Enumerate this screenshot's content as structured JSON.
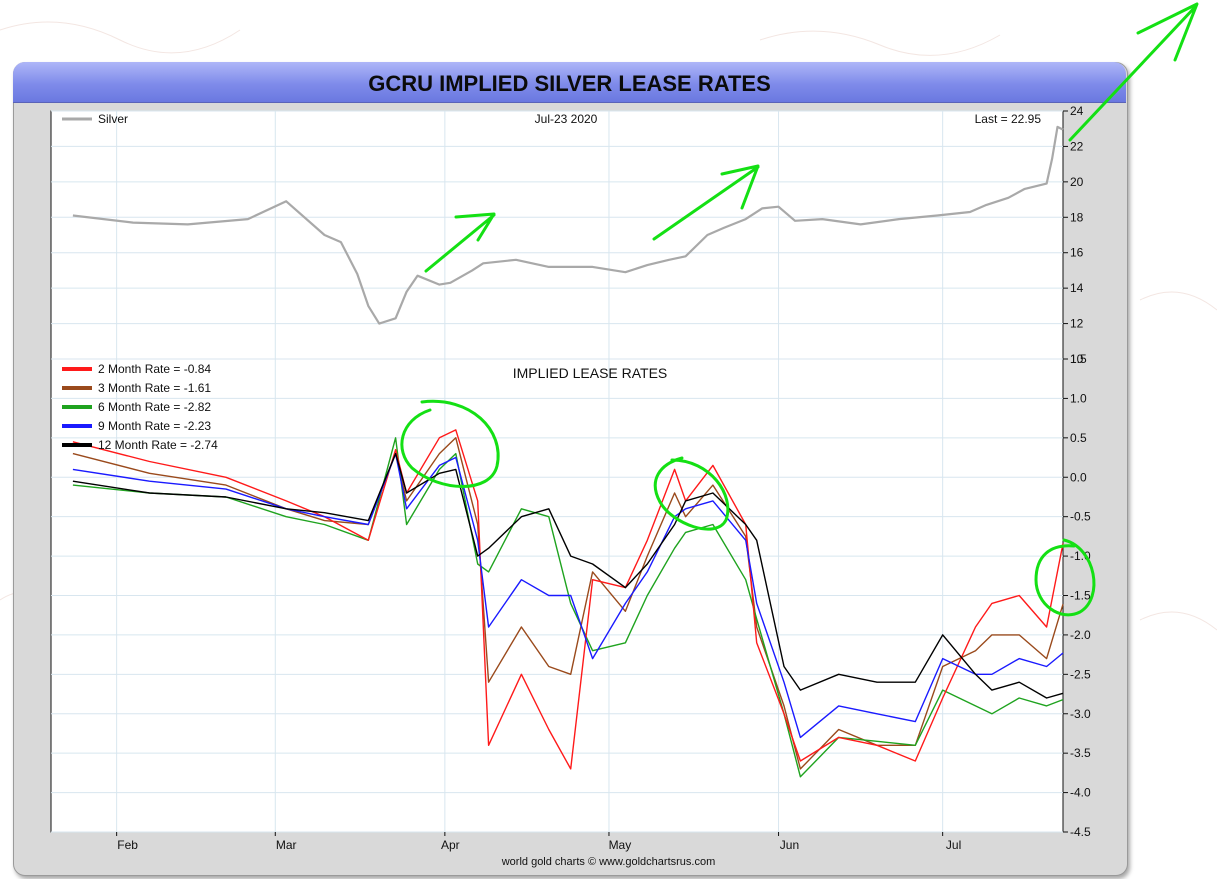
{
  "title": "GCRU IMPLIED SILVER LEASE RATES",
  "credit": "world gold charts © www.goldchartsrus.com",
  "top_panel": {
    "legend": "Silver",
    "date_label": "Jul-23  2020",
    "last_label": "Last = 22.95"
  },
  "bottom_panel": {
    "title": "IMPLIED LEASE RATES"
  },
  "x_ticks": [
    "Feb",
    "Mar",
    "Apr",
    "May",
    "Jun",
    "Jul"
  ],
  "colors": {
    "silver": "#a9a9a9",
    "rate_2m": "#ff1a1a",
    "rate_3m": "#9a4a1c",
    "rate_6m": "#1fa31f",
    "rate_9m": "#1a1aff",
    "rate_12m": "#000000",
    "annotation": "#14e014",
    "grid": "#d8e6ef"
  },
  "chart_data": [
    {
      "type": "line",
      "title": "",
      "xlabel": "",
      "ylabel": "",
      "ylim": [
        10,
        24
      ],
      "yticks": [
        "10",
        "12",
        "14",
        "16",
        "18",
        "20",
        "22",
        "24"
      ],
      "grid": true,
      "legend_position": "top-left",
      "x": [
        "2020-01-24",
        "2020-02-04",
        "2020-02-14",
        "2020-02-25",
        "2020-03-03",
        "2020-03-10",
        "2020-03-13",
        "2020-03-16",
        "2020-03-18",
        "2020-03-20",
        "2020-03-23",
        "2020-03-25",
        "2020-03-27",
        "2020-03-31",
        "2020-04-02",
        "2020-04-06",
        "2020-04-08",
        "2020-04-14",
        "2020-04-20",
        "2020-04-28",
        "2020-05-04",
        "2020-05-08",
        "2020-05-12",
        "2020-05-15",
        "2020-05-19",
        "2020-05-22",
        "2020-05-26",
        "2020-05-29",
        "2020-06-01",
        "2020-06-04",
        "2020-06-09",
        "2020-06-16",
        "2020-06-23",
        "2020-06-30",
        "2020-07-06",
        "2020-07-09",
        "2020-07-13",
        "2020-07-16",
        "2020-07-20",
        "2020-07-21",
        "2020-07-22",
        "2020-07-23"
      ],
      "series": [
        {
          "name": "Silver",
          "values": [
            18.1,
            17.7,
            17.6,
            17.9,
            18.9,
            17.0,
            16.6,
            14.8,
            13.0,
            12.0,
            12.3,
            13.8,
            14.7,
            14.2,
            14.3,
            15.0,
            15.4,
            15.6,
            15.2,
            15.2,
            14.9,
            15.3,
            15.6,
            15.8,
            17.0,
            17.4,
            17.9,
            18.5,
            18.6,
            17.8,
            17.9,
            17.6,
            17.9,
            18.1,
            18.3,
            18.7,
            19.1,
            19.6,
            19.9,
            21.3,
            23.1,
            22.95
          ]
        }
      ]
    },
    {
      "type": "line",
      "title": "IMPLIED LEASE RATES",
      "xlabel": "",
      "ylabel": "",
      "ylim": [
        -4.5,
        1.5
      ],
      "yticks": [
        "1.5",
        "1.0",
        "0.5",
        "0.0",
        "-0.5",
        "-1.0",
        "-1.5",
        "-2.0",
        "-2.5",
        "-3.0",
        "-3.5",
        "-4.0",
        "-4.5"
      ],
      "grid": true,
      "legend_position": "top-left",
      "x": [
        "2020-01-24",
        "2020-02-07",
        "2020-02-21",
        "2020-03-03",
        "2020-03-10",
        "2020-03-18",
        "2020-03-23",
        "2020-03-25",
        "2020-03-31",
        "2020-04-03",
        "2020-04-07",
        "2020-04-09",
        "2020-04-15",
        "2020-04-20",
        "2020-04-24",
        "2020-04-28",
        "2020-05-04",
        "2020-05-08",
        "2020-05-13",
        "2020-05-15",
        "2020-05-20",
        "2020-05-26",
        "2020-05-28",
        "2020-06-02",
        "2020-06-05",
        "2020-06-12",
        "2020-06-19",
        "2020-06-26",
        "2020-07-01",
        "2020-07-07",
        "2020-07-10",
        "2020-07-15",
        "2020-07-20",
        "2020-07-23"
      ],
      "series": [
        {
          "name": "2 Month Rate  = -0.84",
          "legend_label": "2 Month Rate  = -0.84",
          "color_key": "rate_2m",
          "values": [
            0.45,
            0.2,
            0.0,
            -0.3,
            -0.5,
            -0.8,
            0.35,
            -0.2,
            0.5,
            0.6,
            -0.3,
            -3.4,
            -2.5,
            -3.2,
            -3.7,
            -1.3,
            -1.4,
            -0.8,
            0.1,
            -0.3,
            0.15,
            -0.6,
            -2.1,
            -3.0,
            -3.6,
            -3.3,
            -3.4,
            -3.6,
            -2.8,
            -1.9,
            -1.6,
            -1.5,
            -1.9,
            -0.84
          ]
        },
        {
          "name": "3 Month Rate  = -1.61",
          "legend_label": "3 Month Rate  = -1.61",
          "color_key": "rate_3m",
          "values": [
            0.3,
            0.05,
            -0.1,
            -0.4,
            -0.55,
            -0.6,
            0.3,
            -0.3,
            0.3,
            0.5,
            -0.6,
            -2.6,
            -1.9,
            -2.4,
            -2.5,
            -1.2,
            -1.7,
            -1.0,
            -0.2,
            -0.5,
            -0.1,
            -0.75,
            -1.9,
            -2.9,
            -3.7,
            -3.2,
            -3.4,
            -3.4,
            -2.4,
            -2.2,
            -2.0,
            -2.0,
            -2.3,
            -1.61
          ]
        },
        {
          "name": "6 Month Rate  = -2.82",
          "legend_label": "6 Month Rate  = -2.82",
          "color_key": "rate_6m",
          "values": [
            -0.1,
            -0.2,
            -0.25,
            -0.5,
            -0.6,
            -0.8,
            0.5,
            -0.6,
            0.1,
            0.3,
            -1.1,
            -1.2,
            -0.4,
            -0.5,
            -1.6,
            -2.2,
            -2.1,
            -1.5,
            -0.9,
            -0.7,
            -0.6,
            -1.3,
            -1.8,
            -3.0,
            -3.8,
            -3.3,
            -3.35,
            -3.4,
            -2.7,
            -2.9,
            -3.0,
            -2.8,
            -2.9,
            -2.82
          ]
        },
        {
          "name": "9 Month Rate  = -2.23",
          "legend_label": "9 Month Rate  = -2.23",
          "color_key": "rate_9m",
          "values": [
            0.1,
            -0.05,
            -0.15,
            -0.4,
            -0.5,
            -0.6,
            0.3,
            -0.4,
            0.15,
            0.25,
            -0.8,
            -1.9,
            -1.3,
            -1.5,
            -1.5,
            -2.3,
            -1.6,
            -1.2,
            -0.5,
            -0.4,
            -0.3,
            -0.8,
            -1.6,
            -2.6,
            -3.3,
            -2.9,
            -3.0,
            -3.1,
            -2.3,
            -2.5,
            -2.5,
            -2.3,
            -2.4,
            -2.23
          ]
        },
        {
          "name": "12 Month Rate  = -2.74",
          "legend_label": "12 Month Rate  = -2.74",
          "color_key": "rate_12m",
          "values": [
            -0.05,
            -0.2,
            -0.25,
            -0.4,
            -0.45,
            -0.55,
            0.3,
            -0.2,
            0.05,
            0.1,
            -1.0,
            -0.9,
            -0.5,
            -0.4,
            -1.0,
            -1.1,
            -1.4,
            -1.1,
            -0.6,
            -0.3,
            -0.2,
            -0.6,
            -0.8,
            -2.4,
            -2.7,
            -2.5,
            -2.6,
            -2.6,
            -2.0,
            -2.5,
            -2.7,
            -2.6,
            -2.8,
            -2.74
          ]
        }
      ]
    }
  ]
}
